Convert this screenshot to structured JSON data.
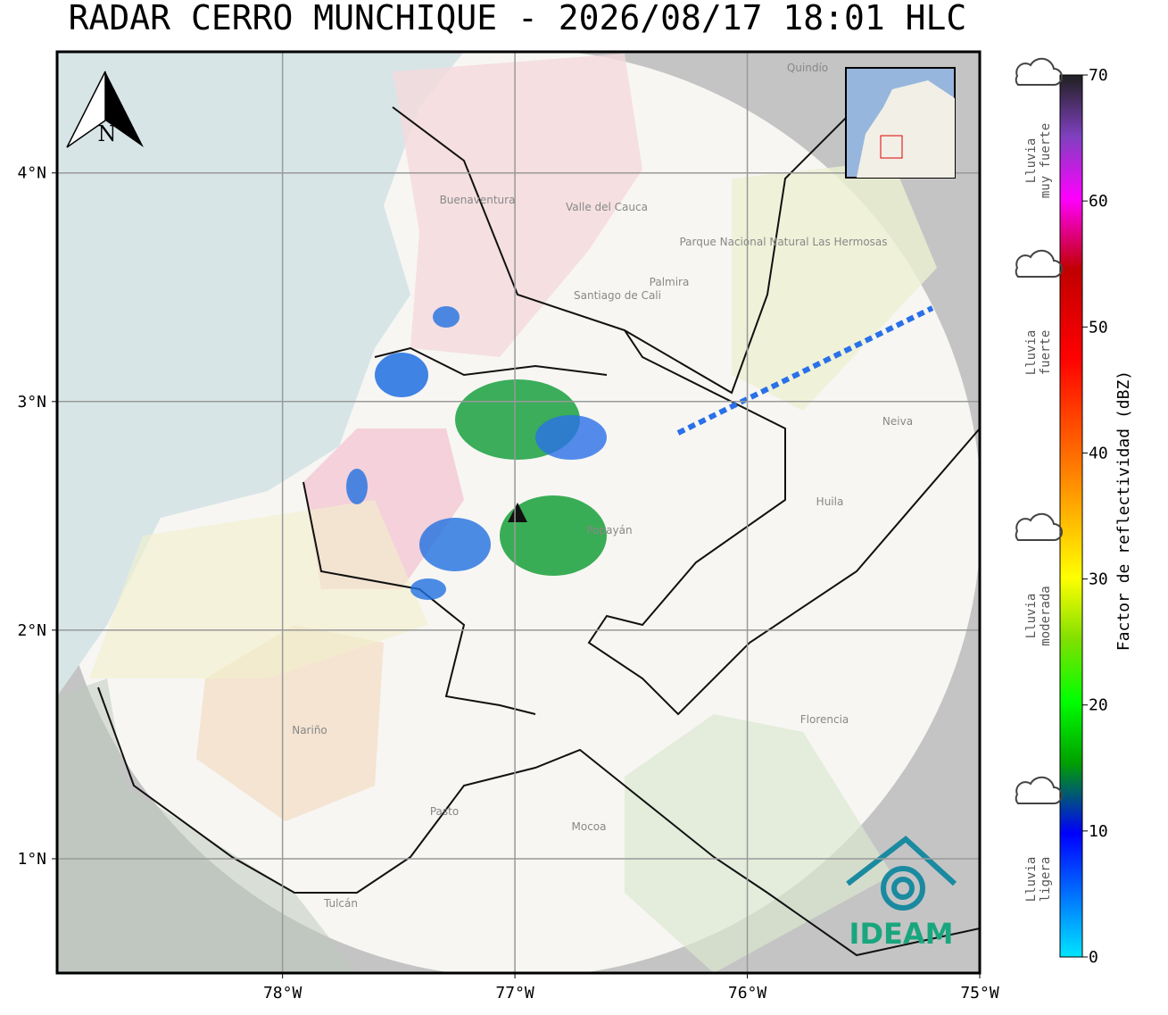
{
  "header": {
    "title": "RADAR CERRO MUNCHIQUE - 2026/08/17 18:01 HLC"
  },
  "map": {
    "xlim": [
      -78.97,
      -75
    ],
    "ylim": [
      0.5,
      4.53
    ],
    "lon_ticks": [
      {
        "value": -78,
        "label": "78°W"
      },
      {
        "value": -77,
        "label": "77°W"
      },
      {
        "value": -76,
        "label": "76°W"
      },
      {
        "value": -75,
        "label": "75°W"
      }
    ],
    "lat_ticks": [
      {
        "value": 1,
        "label": "1°N"
      },
      {
        "value": 2,
        "label": "2°N"
      },
      {
        "value": 3,
        "label": "3°N"
      },
      {
        "value": 4,
        "label": "4°N"
      }
    ],
    "north": "N",
    "places": [
      "Buenaventura",
      "Valle del Cauca",
      "Santiago de Cali",
      "Palmira",
      "Parque Nacional Natural Las Hermosas",
      "Neiva",
      "Huila",
      "Popayán",
      "Florencia",
      "Nariño",
      "Pasto",
      "Mocoa",
      "Tulcán",
      "Quindío"
    ],
    "logo": "IDEAM"
  },
  "colorbar": {
    "label": "Factor de reflectividad (dBZ)",
    "lim": [
      0,
      70
    ],
    "ticks": [
      0,
      10,
      20,
      30,
      40,
      50,
      60,
      70
    ]
  },
  "legend": {
    "categories": [
      [
        "Lluvia",
        "muy fuerte"
      ],
      [
        "Lluvia",
        "fuerte"
      ],
      [
        "Lluvia",
        "moderada"
      ],
      [
        "Lluvia",
        "ligera"
      ]
    ]
  }
}
